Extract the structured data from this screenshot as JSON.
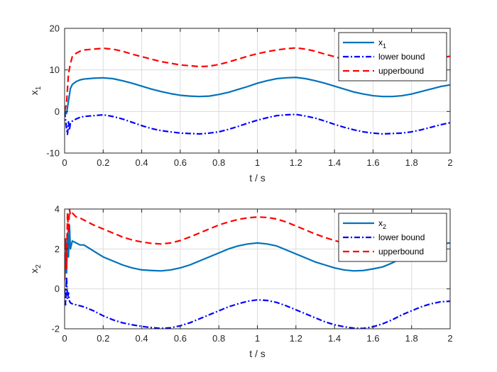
{
  "chart_data": [
    {
      "type": "line",
      "id": "x1",
      "xlabel": "t / s",
      "ylabel_base": "x",
      "ylabel_sub": "1",
      "xlim": [
        0,
        2
      ],
      "ylim": [
        -10,
        20
      ],
      "xticks": [
        0,
        0.2,
        0.4,
        0.6,
        0.8,
        1,
        1.2,
        1.4,
        1.6,
        1.8,
        2
      ],
      "xtick_labels": [
        "0",
        "0.2",
        "0.4",
        "0.6",
        "0.8",
        "1",
        "1.2",
        "1.4",
        "1.6",
        "1.8",
        "2"
      ],
      "yticks": [
        -10,
        0,
        10,
        20
      ],
      "ytick_labels": [
        "-10",
        "0",
        "10",
        "20"
      ],
      "grid": true,
      "legend_position": "top-right",
      "series": [
        {
          "name": "x",
          "name_sub": "1",
          "color": "#0072BD",
          "dash": "solid",
          "x": [
            0,
            0.01,
            0.02,
            0.03,
            0.04,
            0.06,
            0.08,
            0.1,
            0.15,
            0.2,
            0.25,
            0.3,
            0.35,
            0.4,
            0.45,
            0.5,
            0.55,
            0.6,
            0.65,
            0.7,
            0.75,
            0.8,
            0.85,
            0.9,
            0.95,
            1.0,
            1.05,
            1.1,
            1.15,
            1.2,
            1.25,
            1.3,
            1.35,
            1.4,
            1.45,
            1.5,
            1.55,
            1.6,
            1.65,
            1.7,
            1.75,
            1.8,
            1.85,
            1.9,
            1.95,
            2.0
          ],
          "y": [
            0,
            -0.5,
            2.5,
            5.5,
            6.5,
            7.2,
            7.6,
            7.8,
            8.0,
            8.1,
            7.9,
            7.4,
            6.8,
            6.1,
            5.4,
            4.8,
            4.3,
            3.9,
            3.7,
            3.6,
            3.7,
            4.1,
            4.6,
            5.3,
            6.0,
            6.8,
            7.4,
            7.9,
            8.1,
            8.2,
            7.9,
            7.4,
            6.8,
            6.1,
            5.4,
            4.7,
            4.2,
            3.8,
            3.6,
            3.6,
            3.8,
            4.2,
            4.8,
            5.4,
            6.0,
            6.4
          ]
        },
        {
          "name": "lower bound",
          "color": "#0000FF",
          "dash": "dashdot",
          "x": [
            0,
            0.01,
            0.015,
            0.02,
            0.025,
            0.03,
            0.04,
            0.06,
            0.08,
            0.1,
            0.15,
            0.2,
            0.25,
            0.3,
            0.35,
            0.4,
            0.45,
            0.5,
            0.55,
            0.6,
            0.65,
            0.7,
            0.75,
            0.8,
            0.85,
            0.9,
            0.95,
            1.0,
            1.05,
            1.1,
            1.15,
            1.2,
            1.25,
            1.3,
            1.35,
            1.4,
            1.45,
            1.5,
            1.55,
            1.6,
            1.65,
            1.7,
            1.75,
            1.8,
            1.85,
            1.9,
            1.95,
            2.0
          ],
          "y": [
            0,
            -4,
            -5.5,
            -2.5,
            -4.5,
            -2.8,
            -2.3,
            -1.8,
            -1.4,
            -1.2,
            -1.0,
            -0.8,
            -1.2,
            -1.8,
            -2.6,
            -3.4,
            -4.1,
            -4.6,
            -4.9,
            -5.2,
            -5.3,
            -5.4,
            -5.2,
            -4.9,
            -4.3,
            -3.6,
            -2.8,
            -2.1,
            -1.5,
            -1.0,
            -0.8,
            -0.7,
            -1.1,
            -1.6,
            -2.3,
            -3.1,
            -3.8,
            -4.4,
            -4.9,
            -5.2,
            -5.4,
            -5.3,
            -5.2,
            -4.9,
            -4.4,
            -3.8,
            -3.2,
            -2.7
          ]
        },
        {
          "name": "upperbound",
          "color": "#FF0000",
          "dash": "dashed",
          "x": [
            0,
            0.01,
            0.02,
            0.03,
            0.04,
            0.06,
            0.08,
            0.1,
            0.15,
            0.2,
            0.25,
            0.3,
            0.35,
            0.4,
            0.45,
            0.5,
            0.55,
            0.6,
            0.65,
            0.7,
            0.75,
            0.8,
            0.85,
            0.9,
            0.95,
            1.0,
            1.05,
            1.1,
            1.15,
            1.2,
            1.25,
            1.3,
            1.35,
            1.4,
            1.45,
            1.5,
            1.55,
            1.6,
            1.65,
            1.7,
            1.75,
            1.8,
            1.85,
            1.9,
            1.95,
            2.0
          ],
          "y": [
            0,
            2,
            9,
            11.5,
            13.2,
            14.0,
            14.5,
            14.8,
            15.0,
            15.2,
            15.0,
            14.5,
            13.8,
            13.2,
            12.6,
            12.0,
            11.6,
            11.2,
            11.0,
            10.8,
            10.9,
            11.3,
            11.9,
            12.6,
            13.3,
            13.9,
            14.4,
            14.8,
            15.1,
            15.3,
            15.0,
            14.5,
            13.8,
            13.2,
            12.5,
            11.9,
            11.4,
            11.0,
            10.8,
            10.7,
            10.9,
            11.3,
            11.9,
            12.4,
            12.9,
            13.3
          ]
        }
      ]
    },
    {
      "type": "line",
      "id": "x2",
      "xlabel": "t / s",
      "ylabel_base": "x",
      "ylabel_sub": "2",
      "xlim": [
        0,
        2
      ],
      "ylim": [
        -2,
        4
      ],
      "xticks": [
        0,
        0.2,
        0.4,
        0.6,
        0.8,
        1,
        1.2,
        1.4,
        1.6,
        1.8,
        2
      ],
      "xtick_labels": [
        "0",
        "0.2",
        "0.4",
        "0.6",
        "0.8",
        "1",
        "1.2",
        "1.4",
        "1.6",
        "1.8",
        "2"
      ],
      "yticks": [
        -2,
        0,
        2,
        4
      ],
      "ytick_labels": [
        "-2",
        "0",
        "2",
        "4"
      ],
      "grid": true,
      "legend_position": "top-right",
      "series": [
        {
          "name": "x",
          "name_sub": "2",
          "color": "#0072BD",
          "dash": "solid",
          "x": [
            0,
            0.005,
            0.01,
            0.015,
            0.02,
            0.025,
            0.03,
            0.04,
            0.06,
            0.08,
            0.1,
            0.15,
            0.2,
            0.25,
            0.3,
            0.35,
            0.4,
            0.45,
            0.5,
            0.55,
            0.6,
            0.65,
            0.7,
            0.75,
            0.8,
            0.85,
            0.9,
            0.95,
            1.0,
            1.05,
            1.1,
            1.15,
            1.2,
            1.25,
            1.3,
            1.35,
            1.4,
            1.45,
            1.5,
            1.55,
            1.6,
            1.65,
            1.7,
            1.75,
            1.8,
            1.85,
            1.9,
            1.95,
            2.0
          ],
          "y": [
            0.4,
            1.5,
            0.8,
            2.8,
            1.6,
            3.2,
            2.0,
            2.4,
            2.3,
            2.2,
            2.2,
            1.9,
            1.6,
            1.4,
            1.2,
            1.05,
            0.95,
            0.92,
            0.9,
            0.95,
            1.05,
            1.2,
            1.4,
            1.6,
            1.8,
            2.0,
            2.15,
            2.25,
            2.3,
            2.25,
            2.15,
            1.95,
            1.75,
            1.55,
            1.35,
            1.2,
            1.05,
            0.95,
            0.9,
            0.92,
            1.0,
            1.1,
            1.3,
            1.55,
            1.8,
            2.0,
            2.15,
            2.25,
            2.3
          ]
        },
        {
          "name": "lower bound",
          "color": "#0000FF",
          "dash": "dashdot",
          "x": [
            0,
            0.005,
            0.01,
            0.015,
            0.02,
            0.025,
            0.03,
            0.04,
            0.06,
            0.08,
            0.1,
            0.15,
            0.2,
            0.25,
            0.3,
            0.35,
            0.4,
            0.45,
            0.5,
            0.55,
            0.6,
            0.65,
            0.7,
            0.75,
            0.8,
            0.85,
            0.9,
            0.95,
            1.0,
            1.05,
            1.1,
            1.15,
            1.2,
            1.25,
            1.3,
            1.35,
            1.4,
            1.45,
            1.5,
            1.55,
            1.6,
            1.65,
            1.7,
            1.75,
            1.8,
            1.85,
            1.9,
            1.95,
            2.0
          ],
          "y": [
            0,
            -0.8,
            0.6,
            -0.5,
            -0.2,
            -0.6,
            -0.7,
            -0.75,
            -0.8,
            -0.85,
            -0.9,
            -1.1,
            -1.35,
            -1.55,
            -1.7,
            -1.8,
            -1.88,
            -1.94,
            -1.98,
            -1.95,
            -1.85,
            -1.7,
            -1.5,
            -1.3,
            -1.1,
            -0.9,
            -0.75,
            -0.62,
            -0.55,
            -0.58,
            -0.68,
            -0.85,
            -1.05,
            -1.25,
            -1.45,
            -1.65,
            -1.8,
            -1.9,
            -1.97,
            -1.98,
            -1.9,
            -1.75,
            -1.55,
            -1.3,
            -1.1,
            -0.9,
            -0.75,
            -0.65,
            -0.62
          ]
        },
        {
          "name": "upperbound",
          "color": "#FF0000",
          "dash": "dashed",
          "x": [
            0,
            0.005,
            0.01,
            0.015,
            0.02,
            0.025,
            0.03,
            0.04,
            0.06,
            0.08,
            0.1,
            0.15,
            0.2,
            0.25,
            0.3,
            0.35,
            0.4,
            0.45,
            0.5,
            0.55,
            0.6,
            0.65,
            0.7,
            0.75,
            0.8,
            0.85,
            0.9,
            0.95,
            1.0,
            1.05,
            1.1,
            1.15,
            1.2,
            1.25,
            1.3,
            1.35,
            1.4,
            1.45,
            1.5,
            1.55,
            1.6,
            1.65,
            1.7,
            1.75,
            1.8,
            1.85,
            1.9,
            1.95,
            2.0
          ],
          "y": [
            0.5,
            2.5,
            1.0,
            3.8,
            2.8,
            4.0,
            3.7,
            3.8,
            3.6,
            3.55,
            3.45,
            3.2,
            3.0,
            2.8,
            2.6,
            2.45,
            2.35,
            2.28,
            2.25,
            2.3,
            2.42,
            2.6,
            2.8,
            3.0,
            3.2,
            3.35,
            3.48,
            3.56,
            3.6,
            3.58,
            3.5,
            3.35,
            3.15,
            2.95,
            2.75,
            2.58,
            2.42,
            2.3,
            2.25,
            2.27,
            2.35,
            2.5,
            2.7,
            2.9,
            3.1,
            3.28,
            3.42,
            3.52,
            3.58
          ]
        }
      ]
    }
  ]
}
